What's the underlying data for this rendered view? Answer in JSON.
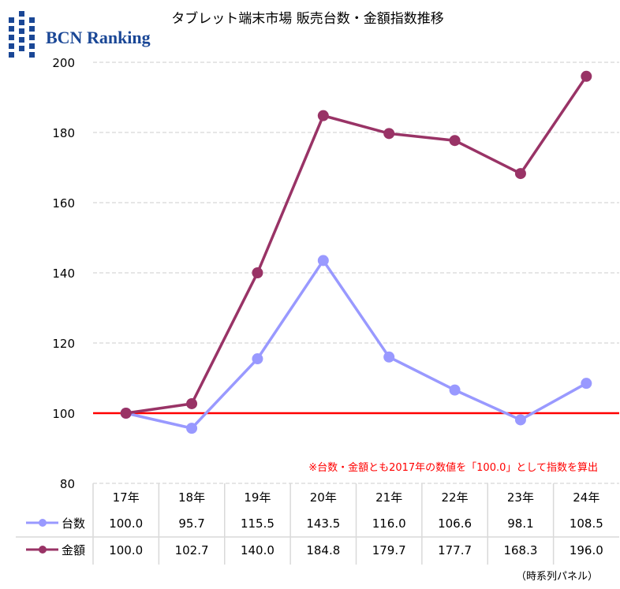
{
  "logo": {
    "text": "BCN Ranking",
    "color": "#1a4796"
  },
  "chart_data": {
    "type": "line",
    "title": "タブレット端末市場 販売台数・金額指数推移",
    "categories": [
      "17年",
      "18年",
      "19年",
      "20年",
      "21年",
      "22年",
      "23年",
      "24年"
    ],
    "series": [
      {
        "name": "台数",
        "color": "#9999ff",
        "values": [
          100.0,
          95.7,
          115.5,
          143.5,
          116.0,
          106.6,
          98.1,
          108.5
        ],
        "labels": [
          "100.0",
          "95.7",
          "115.5",
          "143.5",
          "116.0",
          "106.6",
          "98.1",
          "108.5"
        ]
      },
      {
        "name": "金額",
        "color": "#993366",
        "values": [
          100.0,
          102.7,
          140.0,
          184.8,
          179.7,
          177.7,
          168.3,
          196.0
        ],
        "labels": [
          "100.0",
          "102.7",
          "140.0",
          "184.8",
          "179.7",
          "177.7",
          "168.3",
          "196.0"
        ]
      }
    ],
    "ylim": [
      80,
      200
    ],
    "yticks": [
      80,
      100,
      120,
      140,
      160,
      180,
      200
    ],
    "grid": true,
    "reference_line": {
      "value": 100,
      "color": "#ff0000"
    },
    "annotation": "※台数・金額とも2017年の数値を「100.0」として指数を算出",
    "annotation_color": "#ff0000",
    "footer": "（時系列パネル）",
    "legend": "data-table"
  }
}
